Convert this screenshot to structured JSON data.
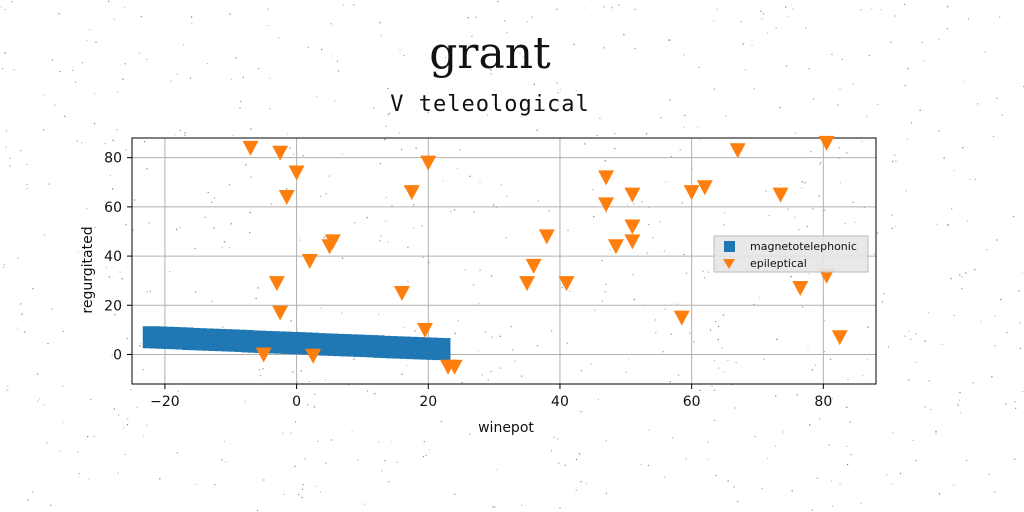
{
  "page": {
    "suptitle": "grant",
    "subtitle": "V teleological"
  },
  "chart_data": {
    "type": "scatter",
    "title": "V teleological",
    "xlabel": "winepot",
    "ylabel": "regurgitated",
    "xlim": [
      -25,
      88
    ],
    "ylim": [
      -12,
      88
    ],
    "xticks": [
      -20,
      0,
      20,
      40,
      60,
      80
    ],
    "yticks": [
      0,
      20,
      40,
      60,
      80
    ],
    "xtick_labels": [
      "−20",
      "0",
      "20",
      "40",
      "60",
      "80"
    ],
    "ytick_labels": [
      "0",
      "20",
      "40",
      "60",
      "80"
    ],
    "grid": true,
    "legend_position": "center-right",
    "series": [
      {
        "name": "magnetotelephonic",
        "marker": "square",
        "color": "#1f77b4",
        "x": [
          -22.0,
          -21.0,
          -20.0,
          -19.0,
          -18.0,
          -17.0,
          -16.0,
          -15.0,
          -14.0,
          -13.0,
          -12.0,
          -11.0,
          -10.0,
          -9.0,
          -8.0,
          -7.0,
          -6.0,
          -5.0,
          -4.0,
          -3.0,
          -2.0,
          -1.0,
          0.0,
          1.0,
          2.0,
          3.0,
          4.0,
          5.0,
          6.0,
          7.0,
          8.0,
          9.0,
          10.0,
          11.0,
          12.0,
          13.0,
          14.0,
          15.0,
          16.0,
          17.0,
          18.0,
          19.0,
          20.0,
          21.0,
          22.0
        ],
        "y": [
          7.0,
          6.9,
          6.8,
          6.7,
          6.6,
          6.5,
          6.3,
          6.2,
          6.1,
          6.0,
          5.9,
          5.8,
          5.7,
          5.6,
          5.5,
          5.3,
          5.2,
          5.1,
          5.0,
          4.9,
          4.8,
          4.7,
          4.6,
          4.5,
          4.4,
          4.2,
          4.1,
          4.0,
          3.9,
          3.8,
          3.7,
          3.6,
          3.5,
          3.4,
          3.3,
          3.1,
          3.0,
          2.9,
          2.8,
          2.7,
          2.6,
          2.5,
          2.4,
          2.3,
          2.2
        ]
      },
      {
        "name": "epileptical",
        "marker": "triangle-down",
        "color": "#ff7f0e",
        "points": [
          [
            -7,
            84
          ],
          [
            -2.5,
            82
          ],
          [
            0,
            74
          ],
          [
            -1.5,
            64
          ],
          [
            20,
            78
          ],
          [
            17.5,
            66
          ],
          [
            5.5,
            46
          ],
          [
            5,
            44
          ],
          [
            2,
            38
          ],
          [
            -3,
            29
          ],
          [
            -2.5,
            17
          ],
          [
            -5,
            0
          ],
          [
            2.5,
            -0.5
          ],
          [
            16,
            25
          ],
          [
            19.5,
            10
          ],
          [
            23,
            -5
          ],
          [
            24,
            -5
          ],
          [
            35,
            29
          ],
          [
            36,
            36
          ],
          [
            38,
            48
          ],
          [
            41,
            29
          ],
          [
            47,
            72
          ],
          [
            47,
            61
          ],
          [
            48.5,
            44
          ],
          [
            51,
            46
          ],
          [
            51,
            52
          ],
          [
            51,
            65
          ],
          [
            58.5,
            15
          ],
          [
            60,
            66
          ],
          [
            62,
            68
          ],
          [
            67,
            83
          ],
          [
            73.5,
            65
          ],
          [
            76.5,
            27
          ],
          [
            80.5,
            86
          ],
          [
            80.5,
            32
          ],
          [
            82.5,
            7
          ]
        ]
      }
    ]
  }
}
